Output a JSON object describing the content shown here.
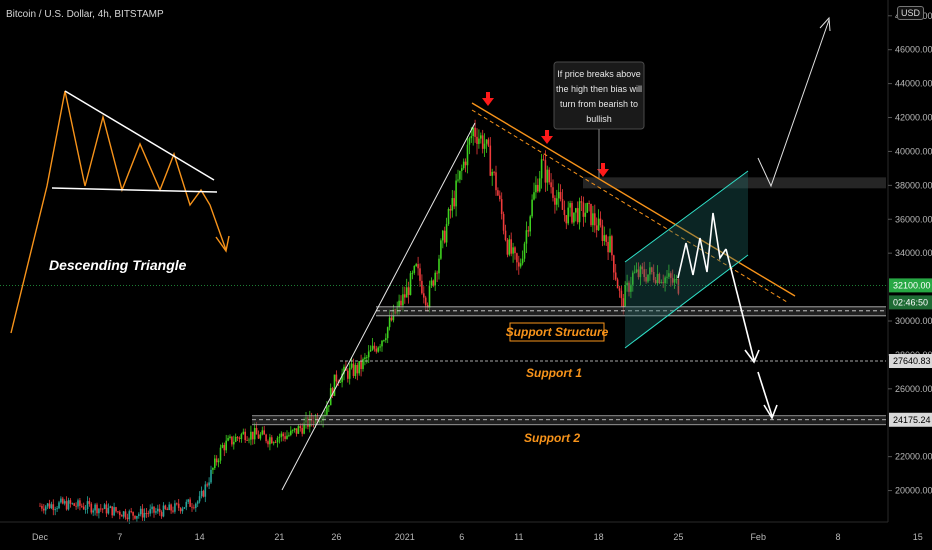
{
  "header": {
    "title": "Bitcoin / U.S. Dollar, 4h, BITSTAMP",
    "currency_badge": "USD"
  },
  "chart_data": {
    "type": "candlestick",
    "ylim": [
      18500,
      48400
    ],
    "y_ticks": [
      "48000.00",
      "46000.00",
      "44000.00",
      "42000.00",
      "40000.00",
      "38000.00",
      "36000.00",
      "34000.00",
      "30000.00",
      "28000.00",
      "26000.00",
      "22000.00",
      "20000.00"
    ],
    "x_ticks": [
      "Dec",
      "7",
      "14",
      "21",
      "26",
      "2021",
      "6",
      "11",
      "18",
      "25",
      "Feb",
      "8",
      "15"
    ],
    "price_tags": {
      "current": "32100.00",
      "countdown": "02:46:50",
      "support_1": "27640.83",
      "support_2": "24175.24"
    },
    "annotations": {
      "pattern_label": "Descending Triangle",
      "support_structure": "Support Structure",
      "support_1": "Support 1",
      "support_2": "Support 2",
      "note_lines": [
        "If price breaks above",
        "the high then bias will",
        "turn from bearish to",
        "bullish"
      ]
    },
    "colors": {
      "up": "#26a69a",
      "up_bright": "#3ed11f",
      "down": "#ef3b3b",
      "accent": "#f7931a",
      "channel": "#2fe0c8",
      "arrow": "#ff1a1a",
      "current_tag": "#27a844"
    },
    "daily_path": [
      [
        "2020-12-01",
        19100
      ],
      [
        "2020-12-03",
        19200
      ],
      [
        "2020-12-06",
        19000
      ],
      [
        "2020-12-09",
        18600
      ],
      [
        "2020-12-12",
        18800
      ],
      [
        "2020-12-15",
        19400
      ],
      [
        "2020-12-17",
        22600
      ],
      [
        "2020-12-19",
        23400
      ],
      [
        "2020-12-21",
        23100
      ],
      [
        "2020-12-23",
        23300
      ],
      [
        "2020-12-26",
        24700
      ],
      [
        "2020-12-27",
        26700
      ],
      [
        "2020-12-29",
        27200
      ],
      [
        "2020-12-31",
        29000
      ],
      [
        "2021-01-02",
        31500
      ],
      [
        "2021-01-03",
        33000
      ],
      [
        "2021-01-04",
        31200
      ],
      [
        "2021-01-06",
        36500
      ],
      [
        "2021-01-08",
        41300
      ],
      [
        "2021-01-09",
        40500
      ],
      [
        "2021-01-10",
        38000
      ],
      [
        "2021-01-11",
        34500
      ],
      [
        "2021-01-12",
        33000
      ],
      [
        "2021-01-13",
        36500
      ],
      [
        "2021-01-14",
        39200
      ],
      [
        "2021-01-16",
        36300
      ],
      [
        "2021-01-18",
        36500
      ],
      [
        "2021-01-20",
        34500
      ],
      [
        "2021-01-21",
        31000
      ],
      [
        "2021-01-22",
        32700
      ],
      [
        "2021-01-24",
        32800
      ],
      [
        "2021-01-25",
        32500
      ],
      [
        "2021-01-26",
        32100
      ]
    ]
  }
}
